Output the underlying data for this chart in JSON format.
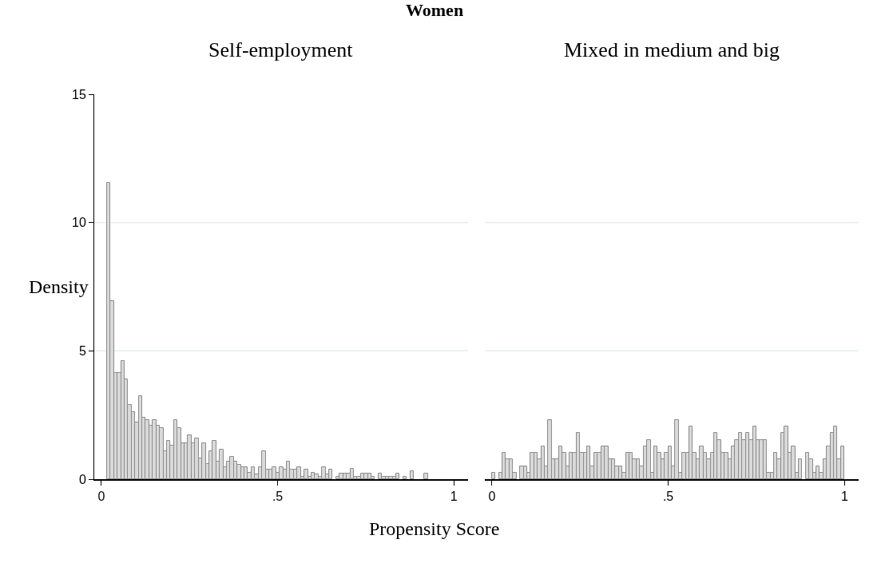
{
  "chart_data": [
    {
      "type": "histogram",
      "title": "Self-employment",
      "annotations": [
        "Women"
      ],
      "ylabel": "Density",
      "xlabel": "Propensity Score",
      "color": "#d9d9d9",
      "grid": "y",
      "xlim": [
        -0.02,
        1.04
      ],
      "ylim": [
        0,
        15
      ],
      "xticks": [
        0,
        {
          "value": 0.5,
          "label": ".5"
        },
        1
      ],
      "yticks": [
        0,
        5,
        10,
        15
      ],
      "bins": [
        0.016,
        0.026,
        0.036,
        0.046,
        0.056,
        0.066,
        0.076,
        0.086,
        0.096,
        0.106,
        0.116,
        0.126,
        0.136,
        0.146,
        0.156,
        0.166,
        0.176,
        0.186,
        0.196,
        0.206,
        0.216,
        0.226,
        0.236,
        0.246,
        0.256,
        0.266,
        0.276,
        0.286,
        0.296,
        0.306,
        0.316,
        0.326,
        0.336,
        0.346,
        0.356,
        0.366,
        0.376,
        0.386,
        0.396,
        0.406,
        0.416,
        0.426,
        0.436,
        0.446,
        0.456,
        0.466,
        0.476,
        0.486,
        0.496,
        0.506,
        0.516,
        0.526,
        0.536,
        0.546,
        0.556,
        0.566,
        0.576,
        0.586,
        0.596,
        0.606,
        0.616,
        0.626,
        0.636,
        0.646,
        0.656,
        0.666,
        0.676,
        0.686,
        0.696,
        0.706,
        0.716,
        0.726,
        0.736,
        0.746,
        0.756,
        0.766,
        0.776,
        0.786,
        0.796,
        0.806,
        0.816,
        0.826,
        0.836,
        0.846,
        0.856,
        0.866,
        0.876,
        0.886,
        0.896,
        0.906,
        0.916,
        0.926
      ],
      "values": [
        11.55,
        6.95,
        4.15,
        4.15,
        4.6,
        3.9,
        2.9,
        2.6,
        2.2,
        3.25,
        2.4,
        2.3,
        2.1,
        2.3,
        2.1,
        2.0,
        1.1,
        1.5,
        1.3,
        2.3,
        2.0,
        1.4,
        1.4,
        1.7,
        1.4,
        1.6,
        0.8,
        1.4,
        0.6,
        1.1,
        1.5,
        0.7,
        1.15,
        0.47,
        0.7,
        0.88,
        0.7,
        0.57,
        0.47,
        0.47,
        0.26,
        0.47,
        0.2,
        0.47,
        1.1,
        0.37,
        0.37,
        0.47,
        0.26,
        0.47,
        0.37,
        0.7,
        0.37,
        0.37,
        0.47,
        0.1,
        0.37,
        0.1,
        0.26,
        0.2,
        0.1,
        0.47,
        0.2,
        0.37,
        0,
        0.1,
        0.23,
        0.23,
        0.23,
        0.41,
        0.1,
        0.1,
        0.23,
        0.23,
        0.23,
        0.1,
        0,
        0.23,
        0.1,
        0.1,
        0.1,
        0.1,
        0.23,
        0,
        0.1,
        0,
        0.3,
        0,
        0,
        0,
        0.23
      ]
    },
    {
      "type": "histogram",
      "title": "Mixed in medium and big",
      "color": "#d9d9d9",
      "grid": "y",
      "tick_labels": "x",
      "xlim": [
        -0.02,
        1.04
      ],
      "ylim": [
        0,
        15
      ],
      "xticks": [
        0,
        {
          "value": 0.5,
          "label": ".5"
        },
        1
      ],
      "yticks": [
        0,
        5,
        10,
        15
      ],
      "bins": [
        0,
        0.01,
        0.02,
        0.03,
        0.04,
        0.05,
        0.06,
        0.07,
        0.08,
        0.09,
        0.1,
        0.11,
        0.12,
        0.13,
        0.14,
        0.15,
        0.16,
        0.17,
        0.18,
        0.19,
        0.2,
        0.21,
        0.22,
        0.23,
        0.24,
        0.25,
        0.26,
        0.27,
        0.28,
        0.29,
        0.3,
        0.31,
        0.32,
        0.33,
        0.34,
        0.35,
        0.36,
        0.37,
        0.38,
        0.39,
        0.4,
        0.41,
        0.42,
        0.43,
        0.44,
        0.45,
        0.46,
        0.47,
        0.48,
        0.49,
        0.5,
        0.51,
        0.52,
        0.53,
        0.54,
        0.55,
        0.56,
        0.57,
        0.58,
        0.59,
        0.6,
        0.61,
        0.62,
        0.63,
        0.64,
        0.65,
        0.66,
        0.67,
        0.68,
        0.69,
        0.7,
        0.71,
        0.72,
        0.73,
        0.74,
        0.75,
        0.76,
        0.77,
        0.78,
        0.79,
        0.8,
        0.81,
        0.82,
        0.83,
        0.84,
        0.85,
        0.86,
        0.87,
        0.88,
        0.89,
        0.9,
        0.91,
        0.92,
        0.93,
        0.94,
        0.95,
        0.96,
        0.97,
        0.98,
        0.99,
        1.0
      ],
      "values": [
        0.26,
        0,
        0.26,
        1.02,
        0.77,
        0.77,
        0.26,
        0,
        0.51,
        0.51,
        0.26,
        1.02,
        1.02,
        0.77,
        1.28,
        0.51,
        2.3,
        0.77,
        0.77,
        1.28,
        1.02,
        0.51,
        1.02,
        1.02,
        1.79,
        1.02,
        1.02,
        1.28,
        0.51,
        1.02,
        1.02,
        1.28,
        1.28,
        0.77,
        0.77,
        0.51,
        0.51,
        0.26,
        1.02,
        1.02,
        0.77,
        0.77,
        0.51,
        1.28,
        1.53,
        0.26,
        1.28,
        1.02,
        0.77,
        1.02,
        1.28,
        0.51,
        2.3,
        0.26,
        1.02,
        1.02,
        2.04,
        1.02,
        0.77,
        1.28,
        1.02,
        0.77,
        1.02,
        1.79,
        1.53,
        1.02,
        1.02,
        0.77,
        1.28,
        1.53,
        1.79,
        1.53,
        1.79,
        1.53,
        2.04,
        1.53,
        1.53,
        1.53,
        0.26,
        0.26,
        1.02,
        0.77,
        1.79,
        2.04,
        1.02,
        1.28,
        0.26,
        0.77,
        0,
        1.02,
        0.77,
        0.26,
        0.51,
        0.26,
        0.77,
        1.28,
        1.79,
        2.04,
        0.77,
        1.28
      ]
    }
  ]
}
